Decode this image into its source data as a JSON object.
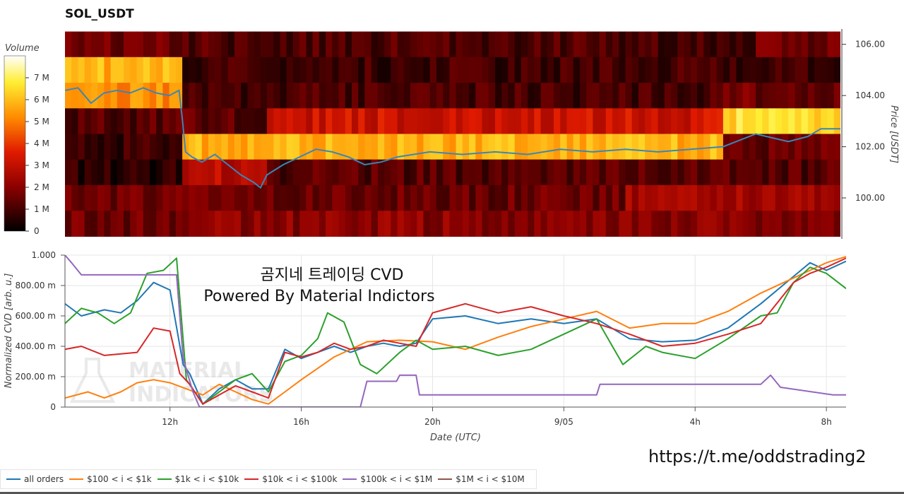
{
  "page": {
    "title": "SOL_USDT",
    "overlay_line1": "곰지네 트레이딩 CVD",
    "overlay_line2": "Powered By Material Indictors",
    "watermark_line1": "MATERIAL",
    "watermark_line2": "INDICATORS",
    "url": "https://t.me/oddstrading2"
  },
  "colors": {
    "background": "#ffffff",
    "heatmap_low": "#000000",
    "heatmap_high": "#ffffff",
    "price_line": "#3a86b8"
  },
  "chart_data": [
    {
      "type": "heatmap",
      "title": "SOL_USDT",
      "colorbar": {
        "label": "Volume",
        "ticks": [
          "0",
          "1 M",
          "2 M",
          "3 M",
          "4 M",
          "5 M",
          "6 M",
          "7 M"
        ],
        "tick_values": [
          0,
          1,
          2,
          3,
          4,
          5,
          6,
          7
        ],
        "range": [
          0,
          8
        ],
        "scale": "black-red-yellow-white"
      },
      "ylabel": "Price [USDT]",
      "y_ticks": [
        "100.00",
        "102.00",
        "104.00",
        "106.00"
      ],
      "y_tick_values": [
        100,
        102,
        104,
        106
      ],
      "ylim": [
        98.4,
        106.6
      ],
      "x_hours_range": [
        8.8,
        32.6
      ],
      "price_bins": [
        [
          105.5,
          106.5
        ],
        [
          104.5,
          105.5
        ],
        [
          103.5,
          104.5
        ],
        [
          102.5,
          103.5
        ],
        [
          101.5,
          102.5
        ],
        [
          100.5,
          101.5
        ],
        [
          99.5,
          100.5
        ],
        [
          98.5,
          99.5
        ]
      ],
      "volume_bands": [
        {
          "bin": 0,
          "segments": [
            {
              "from": 8.8,
              "to": 12.4,
              "level": 1.5
            },
            {
              "from": 12.4,
              "to": 30.0,
              "level": 1.1
            },
            {
              "from": 30.0,
              "to": 32.6,
              "level": 1.5
            }
          ]
        },
        {
          "bin": 1,
          "segments": [
            {
              "from": 8.8,
              "to": 12.4,
              "level": 5.8
            },
            {
              "from": 12.4,
              "to": 32.6,
              "level": 0.9
            }
          ]
        },
        {
          "bin": 2,
          "segments": [
            {
              "from": 8.8,
              "to": 12.4,
              "level": 5.2
            },
            {
              "from": 12.4,
              "to": 29.0,
              "level": 1.0
            },
            {
              "from": 29.0,
              "to": 32.6,
              "level": 1.6
            }
          ]
        },
        {
          "bin": 3,
          "segments": [
            {
              "from": 8.8,
              "to": 12.4,
              "level": 1.2
            },
            {
              "from": 12.4,
              "to": 15.0,
              "level": 1.3
            },
            {
              "from": 15.0,
              "to": 29.0,
              "level": 3.2
            },
            {
              "from": 29.0,
              "to": 32.6,
              "level": 6.5
            }
          ]
        },
        {
          "bin": 4,
          "segments": [
            {
              "from": 8.8,
              "to": 12.4,
              "level": 0.8
            },
            {
              "from": 12.4,
              "to": 29.0,
              "level": 5.8
            },
            {
              "from": 29.0,
              "to": 32.6,
              "level": 1.4
            }
          ]
        },
        {
          "bin": 5,
          "segments": [
            {
              "from": 8.8,
              "to": 12.4,
              "level": 0.6
            },
            {
              "from": 12.4,
              "to": 15.0,
              "level": 2.8
            },
            {
              "from": 15.0,
              "to": 32.6,
              "level": 1.2
            }
          ]
        },
        {
          "bin": 6,
          "segments": [
            {
              "from": 8.8,
              "to": 26.0,
              "level": 1.5
            },
            {
              "from": 26.0,
              "to": 32.6,
              "level": 2.4
            }
          ]
        },
        {
          "bin": 7,
          "segments": [
            {
              "from": 8.8,
              "to": 12.4,
              "level": 1.6
            },
            {
              "from": 12.4,
              "to": 32.6,
              "level": 2.0
            }
          ]
        }
      ],
      "series": [
        {
          "name": "Price",
          "color": "#3a86b8",
          "x": [
            8.8,
            9.2,
            9.6,
            10.0,
            10.4,
            10.8,
            11.2,
            11.6,
            12.0,
            12.3,
            12.4,
            12.5,
            12.7,
            13.0,
            13.4,
            13.8,
            14.2,
            14.6,
            14.8,
            15.0,
            15.5,
            16.0,
            16.5,
            17.0,
            17.5,
            18.0,
            18.5,
            19.0,
            19.5,
            20.0,
            21.0,
            22.0,
            23.0,
            24.0,
            25.0,
            26.0,
            27.0,
            28.0,
            29.0,
            30.0,
            31.0,
            31.6,
            32.0,
            32.6
          ],
          "values": [
            104.2,
            104.3,
            103.7,
            104.1,
            104.2,
            104.1,
            104.3,
            104.1,
            104.0,
            104.2,
            103.1,
            101.8,
            101.6,
            101.4,
            101.7,
            101.3,
            100.9,
            100.6,
            100.4,
            100.9,
            101.3,
            101.6,
            101.9,
            101.8,
            101.6,
            101.3,
            101.4,
            101.6,
            101.7,
            101.8,
            101.7,
            101.8,
            101.7,
            101.9,
            101.8,
            101.9,
            101.8,
            101.9,
            102.0,
            102.5,
            102.2,
            102.4,
            102.7,
            102.7
          ]
        }
      ]
    },
    {
      "type": "line",
      "xlabel": "Date (UTC)",
      "ylabel": "Normalized CVD [arb. u.]",
      "x_ticks": [
        "12h",
        "16h",
        "20h",
        "9/05",
        "4h",
        "8h"
      ],
      "x_tick_values": [
        12,
        16,
        20,
        24,
        28,
        32
      ],
      "xlim": [
        8.8,
        32.6
      ],
      "y_ticks": [
        "0",
        "200.00 m",
        "400.00 m",
        "600.00 m",
        "800.00 m",
        "1.000"
      ],
      "y_tick_values": [
        0,
        0.2,
        0.4,
        0.6,
        0.8,
        1.0
      ],
      "ylim": [
        0,
        1.0
      ],
      "grid": true,
      "legend_placement": "bottom-left",
      "series": [
        {
          "name": "all orders",
          "color": "#1f77b4",
          "x": [
            8.8,
            9.3,
            10.0,
            10.5,
            11.0,
            11.5,
            12.0,
            12.4,
            12.6,
            13.0,
            13.5,
            14.0,
            14.5,
            15.0,
            15.5,
            16.0,
            16.5,
            17.0,
            17.5,
            18.0,
            18.5,
            19.0,
            19.5,
            20.0,
            21.0,
            22.0,
            23.0,
            24.0,
            25.0,
            26.0,
            27.0,
            28.0,
            29.0,
            30.0,
            31.0,
            31.5,
            32.0,
            32.6
          ],
          "values": [
            0.68,
            0.6,
            0.64,
            0.62,
            0.7,
            0.82,
            0.77,
            0.28,
            0.22,
            0.02,
            0.12,
            0.18,
            0.12,
            0.12,
            0.38,
            0.32,
            0.36,
            0.4,
            0.36,
            0.4,
            0.42,
            0.4,
            0.42,
            0.58,
            0.6,
            0.55,
            0.58,
            0.55,
            0.58,
            0.45,
            0.43,
            0.44,
            0.52,
            0.68,
            0.86,
            0.95,
            0.9,
            0.96
          ]
        },
        {
          "name": "$100 < i < $1k",
          "color": "#ff7f0e",
          "x": [
            8.8,
            9.5,
            10.0,
            10.5,
            11.0,
            11.5,
            12.0,
            12.5,
            13.0,
            13.5,
            14.0,
            14.5,
            15.0,
            15.5,
            16.0,
            17.0,
            18.0,
            19.0,
            20.0,
            21.0,
            22.0,
            23.0,
            24.0,
            25.0,
            26.0,
            27.0,
            28.0,
            29.0,
            30.0,
            31.0,
            32.0,
            32.6
          ],
          "values": [
            0.06,
            0.1,
            0.06,
            0.1,
            0.16,
            0.18,
            0.16,
            0.12,
            0.08,
            0.15,
            0.1,
            0.05,
            0.02,
            0.1,
            0.18,
            0.33,
            0.43,
            0.44,
            0.43,
            0.38,
            0.46,
            0.53,
            0.58,
            0.63,
            0.52,
            0.55,
            0.55,
            0.63,
            0.75,
            0.85,
            0.95,
            0.99
          ]
        },
        {
          "name": "$1k < i < $10k",
          "color": "#2ca02c",
          "x": [
            8.8,
            9.3,
            9.8,
            10.3,
            10.8,
            11.3,
            11.8,
            12.2,
            12.5,
            13.0,
            13.5,
            14.0,
            14.5,
            15.0,
            15.5,
            16.0,
            16.5,
            16.8,
            17.3,
            17.8,
            18.3,
            19.0,
            19.5,
            20.0,
            21.0,
            22.0,
            23.0,
            24.0,
            25.0,
            25.8,
            26.5,
            27.0,
            28.0,
            29.0,
            30.0,
            30.5,
            31.0,
            31.5,
            32.0,
            32.6
          ],
          "values": [
            0.55,
            0.65,
            0.62,
            0.55,
            0.62,
            0.88,
            0.9,
            0.98,
            0.18,
            0.02,
            0.1,
            0.18,
            0.22,
            0.1,
            0.3,
            0.34,
            0.45,
            0.62,
            0.56,
            0.28,
            0.22,
            0.36,
            0.44,
            0.38,
            0.4,
            0.34,
            0.38,
            0.48,
            0.58,
            0.28,
            0.4,
            0.36,
            0.32,
            0.45,
            0.6,
            0.62,
            0.82,
            0.92,
            0.88,
            0.78
          ]
        },
        {
          "name": "$10k < i < $100k",
          "color": "#d62728",
          "x": [
            8.8,
            9.3,
            10.0,
            10.5,
            11.0,
            11.5,
            12.0,
            12.3,
            12.6,
            13.0,
            13.5,
            14.0,
            14.5,
            15.0,
            15.5,
            16.0,
            16.5,
            17.0,
            17.5,
            18.0,
            18.5,
            19.0,
            19.5,
            20.0,
            21.0,
            22.0,
            23.0,
            24.0,
            25.0,
            26.0,
            27.0,
            28.0,
            29.0,
            30.0,
            31.0,
            31.5,
            32.0,
            32.6
          ],
          "values": [
            0.38,
            0.4,
            0.34,
            0.35,
            0.36,
            0.52,
            0.5,
            0.22,
            0.15,
            0.02,
            0.08,
            0.14,
            0.1,
            0.06,
            0.36,
            0.33,
            0.36,
            0.42,
            0.38,
            0.4,
            0.44,
            0.42,
            0.4,
            0.62,
            0.68,
            0.62,
            0.66,
            0.6,
            0.55,
            0.48,
            0.4,
            0.42,
            0.48,
            0.55,
            0.82,
            0.88,
            0.92,
            0.98
          ]
        },
        {
          "name": "$100k < i < $1M",
          "color": "#9467bd",
          "x": [
            8.8,
            9.0,
            9.3,
            12.2,
            12.4,
            12.7,
            12.9,
            17.8,
            18.0,
            18.9,
            19.0,
            19.5,
            19.6,
            25.0,
            25.1,
            29.0,
            30.0,
            30.3,
            30.6,
            32.2,
            32.6
          ],
          "values": [
            1.0,
            0.95,
            0.87,
            0.87,
            0.32,
            0.1,
            0.0,
            0.0,
            0.17,
            0.17,
            0.21,
            0.21,
            0.08,
            0.08,
            0.15,
            0.15,
            0.15,
            0.21,
            0.13,
            0.08,
            0.08
          ]
        },
        {
          "name": "$1M < i < $10M",
          "color": "#8c564b",
          "x": [
            8.8,
            32.6
          ],
          "values": [
            null,
            null
          ]
        }
      ]
    }
  ]
}
